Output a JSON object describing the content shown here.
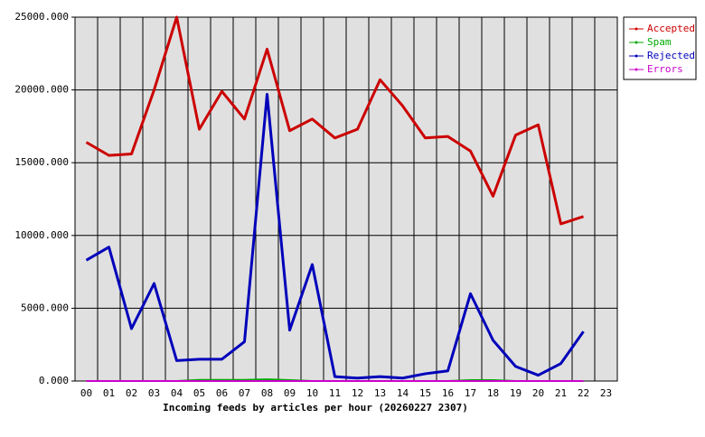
{
  "chart_data": {
    "type": "line",
    "xlabel": "Incoming feeds by articles per hour (20260227 2307)",
    "categories": [
      "00",
      "01",
      "02",
      "03",
      "04",
      "05",
      "06",
      "07",
      "08",
      "09",
      "10",
      "11",
      "12",
      "13",
      "14",
      "15",
      "16",
      "17",
      "18",
      "19",
      "20",
      "21",
      "22",
      "23"
    ],
    "series": [
      {
        "name": "Accepted",
        "color": "#cc0000",
        "values": [
          16400,
          15500,
          15600,
          20000,
          25000,
          17300,
          19900,
          18000,
          22800,
          17200,
          18000,
          16700,
          17300,
          20700,
          18900,
          16700,
          16800,
          15800,
          12700,
          16900,
          17600,
          10800,
          11300,
          null
        ]
      },
      {
        "name": "Spam",
        "color": "#00aa00",
        "values": [
          0,
          0,
          0,
          0,
          0,
          80,
          80,
          80,
          120,
          60,
          0,
          0,
          0,
          0,
          0,
          0,
          0,
          60,
          60,
          0,
          0,
          0,
          0,
          null
        ]
      },
      {
        "name": "Rejected",
        "color": "#0000bb",
        "values": [
          8300,
          9200,
          3600,
          6700,
          1400,
          1500,
          1500,
          2700,
          19700,
          3500,
          8000,
          300,
          200,
          300,
          200,
          500,
          700,
          6000,
          2800,
          1000,
          400,
          1200,
          3400,
          null
        ]
      },
      {
        "name": "Errors",
        "color": "#cc00cc",
        "values": [
          0,
          0,
          0,
          0,
          0,
          0,
          0,
          0,
          0,
          0,
          0,
          0,
          0,
          0,
          0,
          0,
          0,
          0,
          0,
          0,
          0,
          0,
          0,
          null
        ]
      }
    ],
    "ylim": [
      0,
      25000
    ],
    "yticks": [
      {
        "value": 0,
        "label": "0.000"
      },
      {
        "value": 5000,
        "label": "5000.000"
      },
      {
        "value": 10000,
        "label": "10000.000"
      },
      {
        "value": 15000,
        "label": "15000.000"
      },
      {
        "value": 20000,
        "label": "20000.000"
      },
      {
        "value": 25000,
        "label": "25000.000"
      }
    ],
    "grid": true,
    "legend": "outside-top-right"
  }
}
